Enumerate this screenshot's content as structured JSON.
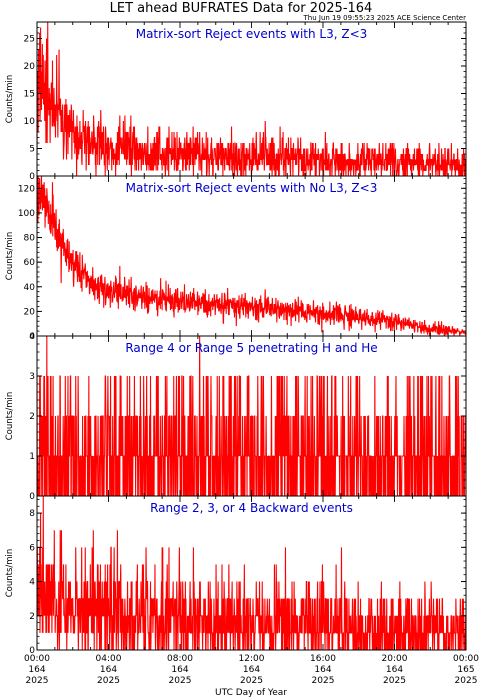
{
  "header": {
    "title": "LET ahead BUFRATES Data for 2025-164",
    "timestamp": "Thu Jun 19 09:55:23 2025 ACE Science Center"
  },
  "colors": {
    "series": "#ff0000",
    "panel_title": "#0000cc",
    "axes": "#000000"
  },
  "x_axis": {
    "label": "UTC Day of Year",
    "ticks": [
      {
        "time": "00:00",
        "doy": "164",
        "year": "2025"
      },
      {
        "time": "04:00",
        "doy": "164",
        "year": "2025"
      },
      {
        "time": "08:00",
        "doy": "164",
        "year": "2025"
      },
      {
        "time": "12:00",
        "doy": "164",
        "year": "2025"
      },
      {
        "time": "16:00",
        "doy": "164",
        "year": "2025"
      },
      {
        "time": "20:00",
        "doy": "164",
        "year": "2025"
      },
      {
        "time": "00:00",
        "doy": "165",
        "year": "2025"
      }
    ]
  },
  "chart_data": [
    {
      "type": "line",
      "title": "Matrix-sort Reject events with L3, Z<3",
      "ylabel": "Counts/min",
      "xlim": [
        0,
        24
      ],
      "ylim": [
        0,
        28
      ],
      "yticks": [
        0,
        5,
        10,
        15,
        20,
        25
      ],
      "grid": false,
      "noise": "continuous",
      "envelope": [
        [
          0,
          16
        ],
        [
          0.3,
          18
        ],
        [
          0.6,
          14
        ],
        [
          1,
          11
        ],
        [
          1.5,
          10
        ],
        [
          2,
          8
        ],
        [
          3,
          6
        ],
        [
          4,
          5
        ],
        [
          6,
          4.5
        ],
        [
          9,
          4
        ],
        [
          12,
          3.5
        ],
        [
          16,
          3
        ],
        [
          20,
          2.5
        ],
        [
          24,
          2
        ]
      ],
      "notable_points": [
        {
          "x": 0.6,
          "y": 28
        },
        {
          "x": 0.2,
          "y": 27
        },
        {
          "x": 1.1,
          "y": 22
        }
      ]
    },
    {
      "type": "line",
      "title": "Matrix-sort Reject events with No L3, Z<3",
      "ylabel": "Counts/min",
      "xlim": [
        0,
        24
      ],
      "ylim": [
        0,
        130
      ],
      "yticks": [
        0,
        20,
        40,
        60,
        80,
        100,
        120
      ],
      "grid": false,
      "noise": "continuous",
      "envelope": [
        [
          0,
          110
        ],
        [
          0.3,
          118
        ],
        [
          0.7,
          100
        ],
        [
          1.2,
          82
        ],
        [
          1.8,
          65
        ],
        [
          2.5,
          50
        ],
        [
          3,
          42
        ],
        [
          4,
          36
        ],
        [
          6,
          32
        ],
        [
          8,
          28
        ],
        [
          12,
          24
        ],
        [
          16,
          18
        ],
        [
          20,
          12
        ],
        [
          22,
          6
        ],
        [
          24,
          3
        ]
      ],
      "notable_points": [
        {
          "x": 0.4,
          "y": 125
        },
        {
          "x": 0.9,
          "y": 115
        }
      ]
    },
    {
      "type": "line",
      "title": "Range 4 or Range 5 penetrating H and He",
      "ylabel": "Counts/min",
      "xlim": [
        0,
        24
      ],
      "ylim": [
        0,
        4
      ],
      "yticks": [
        0,
        1,
        2,
        3,
        4
      ],
      "grid": false,
      "noise": "discrete",
      "envelope": [
        [
          0,
          1.1
        ],
        [
          24,
          1.0
        ]
      ],
      "notable_points": [
        {
          "x": 0.55,
          "y": 4
        },
        {
          "x": 9.1,
          "y": 4
        }
      ]
    },
    {
      "type": "line",
      "title": "Range 2, 3, or 4 Backward events",
      "ylabel": "Counts/min",
      "xlim": [
        0,
        24
      ],
      "ylim": [
        0,
        9
      ],
      "yticks": [
        0,
        2,
        4,
        6,
        8
      ],
      "grid": false,
      "noise": "discrete",
      "envelope": [
        [
          0,
          3.5
        ],
        [
          2,
          2.6
        ],
        [
          6,
          2.0
        ],
        [
          12,
          1.6
        ],
        [
          18,
          1.3
        ],
        [
          24,
          1.1
        ]
      ],
      "notable_points": [
        {
          "x": 0.35,
          "y": 9
        },
        {
          "x": 0.2,
          "y": 8
        },
        {
          "x": 4.5,
          "y": 7
        }
      ]
    }
  ]
}
